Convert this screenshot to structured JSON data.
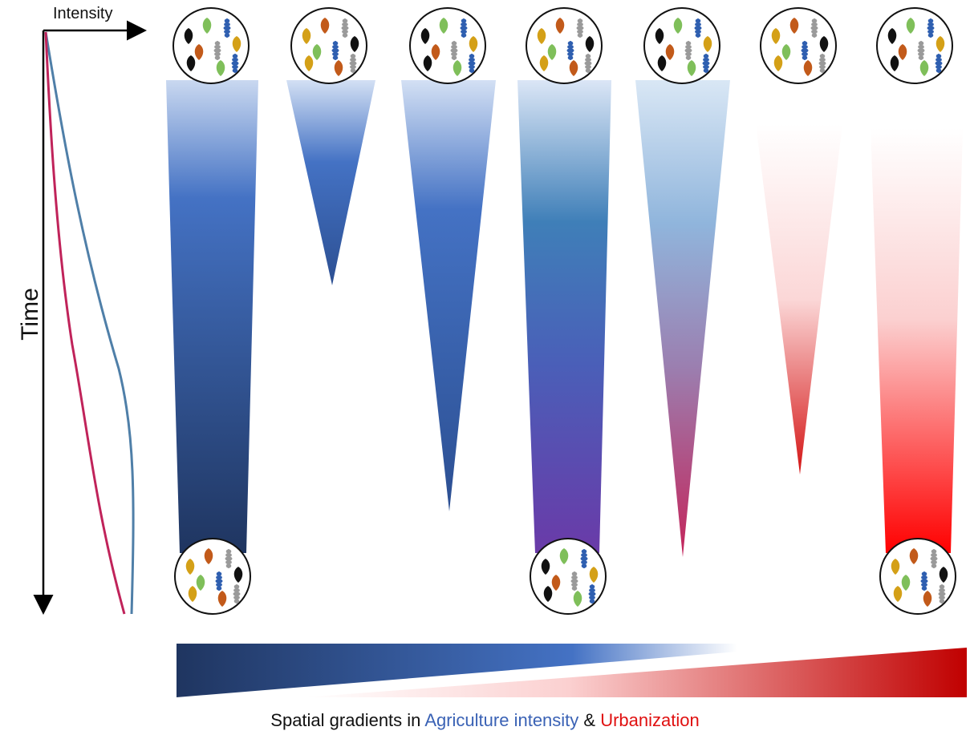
{
  "axes": {
    "x_label": "Intensity",
    "y_label": "Time"
  },
  "caption": {
    "prefix": "Spatial gradients in ",
    "agriculture": "Agriculture intensity",
    "joiner": " & ",
    "urbanization": "Urbanization"
  },
  "colors": {
    "agriculture_dark": "#1f3560",
    "agriculture_mid": "#4472c4",
    "agriculture_light": "#c9d8f0",
    "urbanization": "#e00000",
    "urbanization_light": "#fbd7d7",
    "purple": "#6a3aa8",
    "trajectory_blue": "#4f7fa8",
    "trajectory_red": "#c0235a"
  },
  "icons": {
    "community": "plant-community-icon",
    "plant_colors": [
      "#111111",
      "#7fbf5a",
      "#2f5fb0",
      "#d4a017",
      "#c25a1a",
      "#9a9a9a"
    ]
  },
  "trajectories": [
    {
      "name": "",
      "fill": "agriculture_dark",
      "duration": 0.82,
      "end_width": 0.7,
      "end_community": true
    },
    {
      "name": "",
      "fill": "agriculture_mid",
      "duration": 0.36,
      "end_width": 0.0,
      "end_community": false
    },
    {
      "name": "",
      "fill": "agriculture_mid",
      "duration": 0.76,
      "end_width": 0.0,
      "end_community": false
    },
    {
      "name": "",
      "fill": "purple",
      "duration": 0.82,
      "end_width": 0.45,
      "end_community": true
    },
    {
      "name": "",
      "fill": "trajectory_red",
      "duration": 0.89,
      "end_width": 0.0,
      "end_community": false
    },
    {
      "name": "",
      "fill": "urbanization",
      "duration": 0.7,
      "end_width": 0.0,
      "end_community": false
    },
    {
      "name": "",
      "fill": "urbanization",
      "duration": 0.82,
      "end_width": 0.6,
      "end_community": true
    }
  ]
}
